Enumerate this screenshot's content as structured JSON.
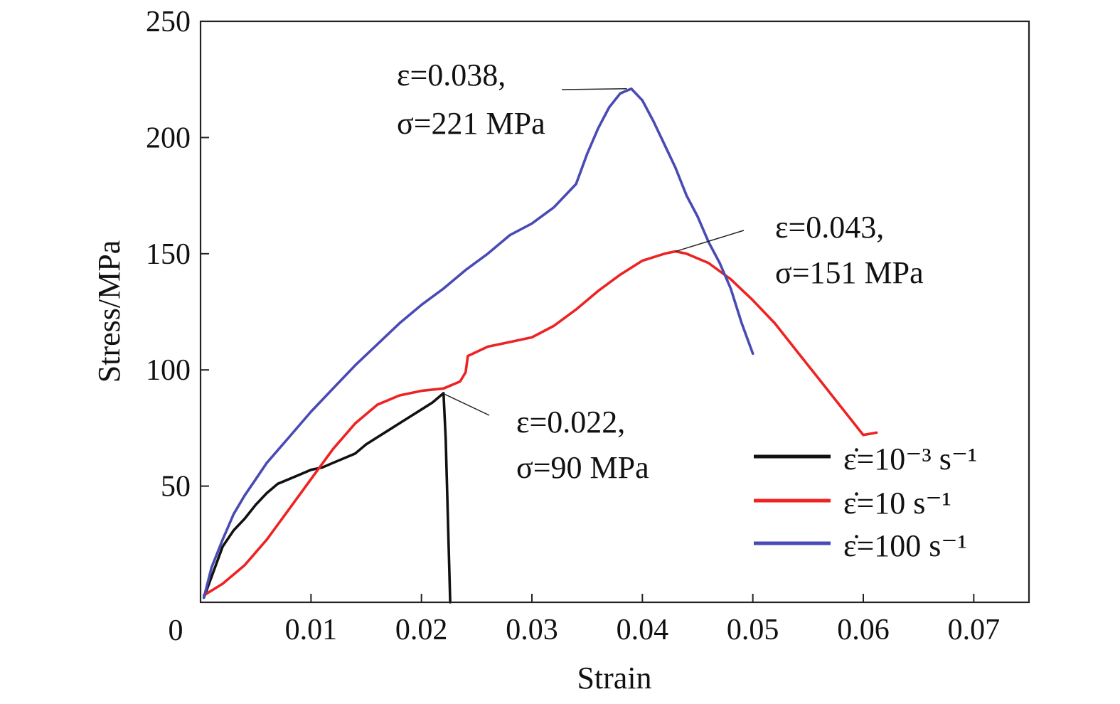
{
  "chart_data": {
    "type": "line",
    "title": "",
    "xlabel": "Strain",
    "ylabel": "Stress/MPa",
    "xlim": [
      0,
      0.075
    ],
    "ylim": [
      0,
      250
    ],
    "x_ticks": [
      0.01,
      0.02,
      0.03,
      0.04,
      0.05,
      0.06,
      0.07
    ],
    "x_tick_labels": [
      "0.01",
      "0.02",
      "0.03",
      "0.04",
      "0.05",
      "0.06",
      "0.07"
    ],
    "y_ticks": [
      50,
      100,
      150,
      200,
      250
    ],
    "y_tick_labels": [
      "50",
      "100",
      "150",
      "200",
      "250"
    ],
    "origin_label": "0",
    "grid": false,
    "legend_position": "bottom-right",
    "series": [
      {
        "name": "ε̇=10⁻³ s⁻¹",
        "color": "#111111",
        "x": [
          0.0003,
          0.001,
          0.002,
          0.003,
          0.004,
          0.005,
          0.006,
          0.007,
          0.008,
          0.009,
          0.01,
          0.011,
          0.012,
          0.013,
          0.014,
          0.015,
          0.016,
          0.017,
          0.018,
          0.019,
          0.02,
          0.021,
          0.022,
          0.0222,
          0.0226
        ],
        "values": [
          2,
          11,
          24,
          31,
          36,
          42,
          47,
          51,
          53,
          55,
          57,
          58,
          60,
          62,
          64,
          68,
          71,
          74,
          77,
          80,
          83,
          86,
          90,
          70,
          0
        ]
      },
      {
        "name": "ε̇=10 s⁻¹",
        "color": "#ee2222",
        "x": [
          0.0003,
          0.002,
          0.004,
          0.006,
          0.008,
          0.01,
          0.012,
          0.014,
          0.016,
          0.018,
          0.02,
          0.022,
          0.0235,
          0.024,
          0.0242,
          0.026,
          0.028,
          0.03,
          0.032,
          0.034,
          0.036,
          0.038,
          0.04,
          0.042,
          0.043,
          0.044,
          0.046,
          0.048,
          0.05,
          0.052,
          0.054,
          0.056,
          0.058,
          0.06,
          0.0612
        ],
        "values": [
          3,
          8,
          16,
          27,
          40,
          53,
          66,
          77,
          85,
          89,
          91,
          92,
          95,
          99,
          106,
          110,
          112,
          114,
          119,
          126,
          134,
          141,
          147,
          150,
          151,
          150,
          146,
          139,
          130,
          120,
          108,
          96,
          84,
          72,
          73
        ]
      },
      {
        "name": "ε̇=100 s⁻¹",
        "color": "#4a4ab4",
        "x": [
          0.0003,
          0.001,
          0.002,
          0.003,
          0.004,
          0.005,
          0.006,
          0.008,
          0.01,
          0.012,
          0.014,
          0.016,
          0.018,
          0.02,
          0.022,
          0.024,
          0.026,
          0.028,
          0.03,
          0.032,
          0.034,
          0.035,
          0.036,
          0.037,
          0.038,
          0.039,
          0.04,
          0.041,
          0.042,
          0.043,
          0.044,
          0.045,
          0.046,
          0.047,
          0.048,
          0.049,
          0.05
        ],
        "values": [
          2,
          15,
          27,
          38,
          46,
          53,
          60,
          71,
          82,
          92,
          102,
          111,
          120,
          128,
          135,
          143,
          150,
          158,
          163,
          170,
          180,
          193,
          204,
          213,
          219,
          221,
          216,
          207,
          197,
          187,
          175,
          166,
          155,
          146,
          135,
          120,
          107
        ]
      }
    ],
    "annotations": [
      {
        "lines": [
          "ε=0.038,",
          "σ=221 MPa"
        ],
        "point": [
          0.0386,
          221
        ]
      },
      {
        "lines": [
          "ε=0.043,",
          "σ=151 MPa"
        ],
        "point": [
          0.043,
          151
        ]
      },
      {
        "lines": [
          "ε=0.022,",
          "σ=90 MPa"
        ],
        "point": [
          0.0219,
          90
        ]
      }
    ]
  }
}
